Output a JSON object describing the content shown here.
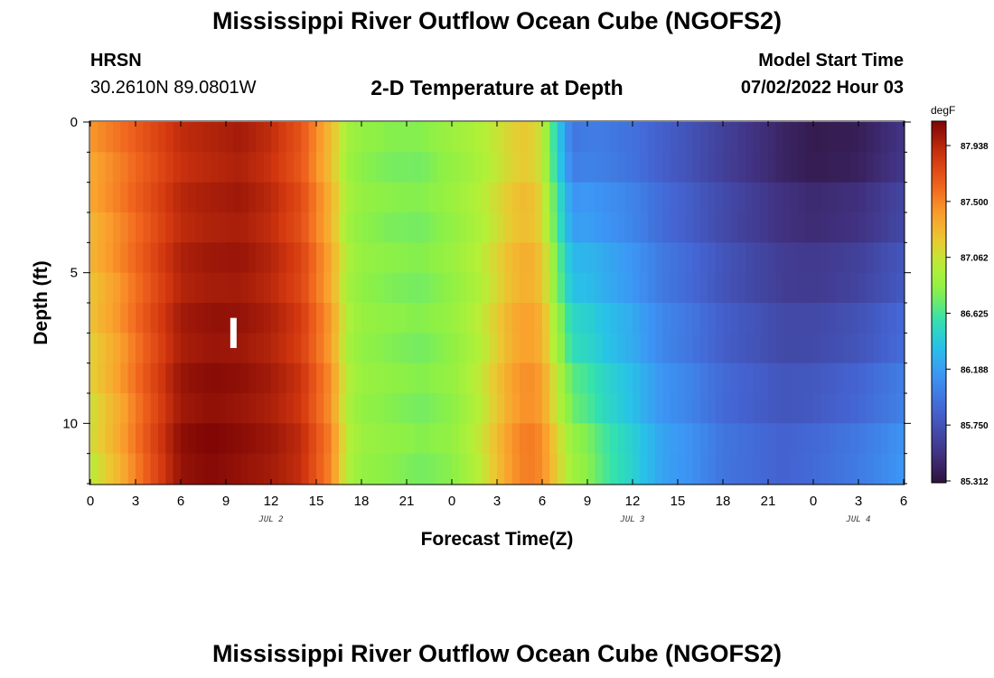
{
  "header": {
    "main_title": "Mississippi River Outflow Ocean Cube (NGOFS2)",
    "station": "HRSN",
    "coords": "30.2610N  89.0801W",
    "chart_title": "2-D Temperature at Depth",
    "start_label": "Model Start Time",
    "start_value": "07/02/2022 Hour 03"
  },
  "footer": {
    "main_title": "Mississippi River Outflow Ocean Cube (NGOFS2)"
  },
  "chart_data": {
    "type": "heatmap",
    "title": "2-D Temperature at Depth",
    "xlabel": "Forecast Time(Z)",
    "ylabel": "Depth (ft)",
    "x_start": "07/02/2022 Hour 00",
    "x_step_hours": 0.5,
    "x_tick_labels": [
      "0",
      "3",
      "6",
      "9",
      "12",
      "15",
      "18",
      "21",
      "0",
      "3",
      "6",
      "9",
      "12",
      "15",
      "18",
      "21",
      "0",
      "3",
      "6"
    ],
    "x_date_labels": [
      "JUL 2",
      "JUL 3",
      "JUL 4"
    ],
    "y_ticks": [
      0,
      5,
      10
    ],
    "ylim": [
      0,
      12
    ],
    "y_reversed": true,
    "colorbar": {
      "unit": "degF",
      "ticks": [
        "87.938",
        "87.500",
        "87.062",
        "86.625",
        "86.188",
        "85.750",
        "85.312"
      ],
      "range": [
        85.312,
        88.1
      ]
    },
    "depth_rows_ft": [
      0.5,
      1.5,
      2.5,
      3.5,
      4.5,
      5.5,
      6.5,
      7.5,
      8.5,
      9.5,
      10.5,
      11.5
    ],
    "profile_hours": [
      0,
      2,
      4,
      6,
      8,
      10,
      12,
      14,
      16,
      17,
      18,
      20,
      22,
      24,
      26,
      28,
      29,
      30,
      31,
      32,
      33,
      34,
      36,
      38,
      40,
      42,
      44,
      46,
      48,
      51,
      54
    ],
    "profile_surface": [
      87.4,
      87.55,
      87.7,
      87.85,
      87.9,
      87.95,
      87.85,
      87.65,
      87.2,
      86.9,
      86.8,
      86.75,
      86.75,
      86.85,
      86.95,
      87.1,
      87.15,
      87.0,
      86.4,
      85.9,
      85.95,
      85.95,
      85.9,
      85.8,
      85.7,
      85.6,
      85.5,
      85.4,
      85.33,
      85.35,
      85.5
    ],
    "profile_bottom": [
      87.0,
      87.3,
      87.7,
      88.05,
      88.1,
      88.05,
      88.0,
      87.9,
      87.5,
      87.0,
      86.85,
      86.8,
      86.75,
      86.8,
      87.05,
      87.45,
      87.55,
      87.5,
      87.2,
      86.95,
      86.85,
      86.7,
      86.5,
      86.25,
      86.15,
      86.0,
      85.95,
      85.9,
      85.95,
      86.05,
      86.2
    ],
    "marker": {
      "hour": 9.5,
      "depth_ft": [
        6.5,
        7.5
      ]
    }
  }
}
